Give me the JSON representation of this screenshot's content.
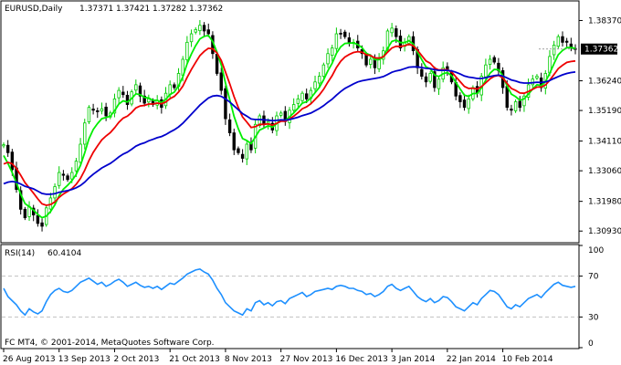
{
  "header": {
    "symbol": "EURUSD,Daily",
    "open": "1.37371",
    "high": "1.37421",
    "low": "1.37282",
    "close": "1.37362"
  },
  "indicator": {
    "name": "RSI(14)",
    "value": "60.4104"
  },
  "footer": {
    "copyright": "FC MT4, © 2001-2014, MetaQuotes Software Corp."
  },
  "price_axis": {
    "ticks": [
      "1.38370",
      "1.36240",
      "1.35190",
      "1.34110",
      "1.33060",
      "1.31980",
      "1.30930"
    ],
    "current_label": "1.37362"
  },
  "rsi_axis": {
    "ticks": [
      "100",
      "70",
      "30",
      "0"
    ]
  },
  "time_axis": {
    "labels": [
      "26 Aug 2013",
      "13 Sep 2013",
      "2 Oct 2013",
      "21 Oct 2013",
      "8 Nov 2013",
      "27 Nov 2013",
      "16 Dec 2013",
      "3 Jan 2014",
      "22 Jan 2014",
      "10 Feb 2014"
    ]
  },
  "colors": {
    "bull_candle": "#00cc00",
    "bear_candle": "#000000",
    "ma_fast": "#00ee00",
    "ma_mid": "#ee0000",
    "ma_slow": "#0000cc",
    "rsi_line": "#1e90ff",
    "level_line": "#c0c0c0",
    "panel_border": "#000000"
  },
  "chart_data": [
    {
      "type": "candlestick",
      "symbol": "EURUSD",
      "timeframe": "Daily",
      "ylim": [
        1.3055,
        1.3903
      ],
      "yticks": [
        1.3837,
        1.3624,
        1.3519,
        1.3411,
        1.3306,
        1.3198,
        1.3093
      ],
      "xticks": [
        "26 Aug 2013",
        "13 Sep 2013",
        "2 Oct 2013",
        "21 Oct 2013",
        "8 Nov 2013",
        "27 Nov 2013",
        "16 Dec 2013",
        "3 Jan 2014",
        "22 Jan 2014",
        "10 Feb 2014"
      ],
      "current_price": 1.37362,
      "close": [
        1.3398,
        1.337,
        1.331,
        1.324,
        1.317,
        1.314,
        1.318,
        1.315,
        1.312,
        1.311,
        1.3175,
        1.321,
        1.325,
        1.33,
        1.329,
        1.3275,
        1.33,
        1.334,
        1.34,
        1.3475,
        1.353,
        1.352,
        1.3515,
        1.3525,
        1.35,
        1.351,
        1.356,
        1.359,
        1.3575,
        1.354,
        1.3585,
        1.361,
        1.357,
        1.3545,
        1.356,
        1.354,
        1.3555,
        1.353,
        1.358,
        1.361,
        1.36,
        1.365,
        1.37,
        1.376,
        1.379,
        1.3805,
        1.382,
        1.38,
        1.379,
        1.372,
        1.365,
        1.359,
        1.349,
        1.344,
        1.338,
        1.337,
        1.335,
        1.34,
        1.338,
        1.347,
        1.35,
        1.347,
        1.348,
        1.345,
        1.35,
        1.351,
        1.348,
        1.352,
        1.354,
        1.356,
        1.358,
        1.356,
        1.359,
        1.362,
        1.364,
        1.368,
        1.372,
        1.374,
        1.379,
        1.379,
        1.378,
        1.376,
        1.376,
        1.374,
        1.372,
        1.368,
        1.37,
        1.367,
        1.37,
        1.373,
        1.38,
        1.381,
        1.378,
        1.374,
        1.376,
        1.378,
        1.373,
        1.367,
        1.364,
        1.362,
        1.365,
        1.36,
        1.363,
        1.367,
        1.366,
        1.362,
        1.357,
        1.355,
        1.353,
        1.356,
        1.36,
        1.358,
        1.364,
        1.368,
        1.37,
        1.369,
        1.366,
        1.36,
        1.353,
        1.352,
        1.355,
        1.353,
        1.357,
        1.361,
        1.363,
        1.364,
        1.36,
        1.365,
        1.371,
        1.375,
        1.378,
        1.376,
        1.376,
        1.374,
        1.3736
      ],
      "series": [
        {
          "name": "MA fast",
          "values": [
            1.336,
            1.3332,
            1.33,
            1.3263,
            1.3223,
            1.319,
            1.3179,
            1.3167,
            1.3152,
            1.314,
            1.3146,
            1.3162,
            1.3186,
            1.3218,
            1.3241,
            1.3255,
            1.3271,
            1.3293,
            1.3325,
            1.337,
            1.3419,
            1.3452,
            1.3473,
            1.349,
            1.3494,
            1.3499,
            1.3518,
            1.3542,
            1.3553,
            1.3549,
            1.3561,
            1.3578,
            1.3575,
            1.3565,
            1.3563,
            1.3555,
            1.3555,
            1.3547,
            1.3558,
            1.3576,
            1.3584,
            1.3606,
            1.3638,
            1.3684,
            1.3719,
            1.3748,
            1.3772,
            1.3781,
            1.3784,
            1.3763,
            1.3725,
            1.368,
            1.3616,
            1.3557,
            1.3498,
            1.3455,
            1.342,
            1.3413,
            1.3402,
            1.3425,
            1.345,
            1.3457,
            1.3465,
            1.346,
            1.3473,
            1.3485,
            1.3484,
            1.3496,
            1.3511,
            1.3527,
            1.3545,
            1.355,
            1.3563,
            1.3582,
            1.3601,
            1.3628,
            1.3659,
            1.3686,
            1.3721,
            1.3744,
            1.3756,
            1.3757,
            1.3758,
            1.3752,
            1.3741,
            1.3721,
            1.3714,
            1.3699,
            1.3699,
            1.3709,
            1.3739,
            1.3763,
            1.3768,
            1.3759,
            1.3759,
            1.3766,
            1.3754,
            1.3726,
            1.3699,
            1.3673,
            1.3666,
            1.3644,
            1.3639,
            1.3649,
            1.3653,
            1.3642,
            1.3618,
            1.3595,
            1.3573,
            1.3569,
            1.3579,
            1.3579,
            1.3599,
            1.3626,
            1.3651,
            1.3664,
            1.3663,
            1.3642,
            1.3605,
            1.3577,
            1.3568,
            1.3555,
            1.356,
            1.3577,
            1.3595,
            1.361,
            1.3607,
            1.3621,
            1.3651,
            1.3684,
            1.3716,
            1.3731,
            1.3741,
            1.3741,
            1.3739
          ]
        },
        {
          "name": "MA mid",
          "values": [
            1.333,
            1.3336,
            1.3331,
            1.3314,
            1.329,
            1.3264,
            1.3246,
            1.3227,
            1.3207,
            1.3189,
            1.3184,
            1.3187,
            1.3196,
            1.3212,
            1.3224,
            1.3233,
            1.3243,
            1.3258,
            1.3279,
            1.3308,
            1.3342,
            1.3371,
            1.3394,
            1.3415,
            1.3429,
            1.3441,
            1.3458,
            1.3477,
            1.3492,
            1.3499,
            1.3512,
            1.3528,
            1.3535,
            1.3537,
            1.3542,
            1.3542,
            1.3545,
            1.3543,
            1.3549,
            1.3561,
            1.3569,
            1.3584,
            1.3605,
            1.3636,
            1.3664,
            1.3689,
            1.3713,
            1.3728,
            1.3739,
            1.3737,
            1.3722,
            1.3696,
            1.3655,
            1.3613,
            1.3568,
            1.353,
            1.3496,
            1.3478,
            1.3459,
            1.3462,
            1.347,
            1.347,
            1.3472,
            1.3467,
            1.3474,
            1.3481,
            1.3481,
            1.3489,
            1.3499,
            1.3511,
            1.3525,
            1.3532,
            1.3543,
            1.3558,
            1.3574,
            1.3594,
            1.3619,
            1.3642,
            1.3671,
            1.3693,
            1.3708,
            1.3717,
            1.3724,
            1.3727,
            1.3725,
            1.3716,
            1.3713,
            1.3705,
            1.3704,
            1.3709,
            1.3725,
            1.374,
            1.3746,
            1.3745,
            1.3748,
            1.3753,
            1.3748,
            1.3732,
            1.3713,
            1.3694,
            1.3686,
            1.3669,
            1.3662,
            1.3663,
            1.3663,
            1.3655,
            1.3638,
            1.3621,
            1.3604,
            1.3597,
            1.3598,
            1.3595,
            1.3603,
            1.3617,
            1.3631,
            1.364,
            1.3643,
            1.3634,
            1.3614,
            1.3597,
            1.359,
            1.3581,
            1.358,
            1.3586,
            1.3594,
            1.3602,
            1.3602,
            1.3609,
            1.3626,
            1.3646,
            1.3667,
            1.3679,
            1.3689,
            1.3692,
            1.3694
          ]
        },
        {
          "name": "MA slow",
          "values": [
            1.326,
            1.3266,
            1.3268,
            1.3266,
            1.3259,
            1.3251,
            1.3247,
            1.3242,
            1.3234,
            1.3226,
            1.3223,
            1.3223,
            1.3225,
            1.323,
            1.3233,
            1.3236,
            1.324,
            1.3246,
            1.3254,
            1.3266,
            1.3281,
            1.3294,
            1.3305,
            1.3316,
            1.3324,
            1.3332,
            1.3343,
            1.3355,
            1.3365,
            1.3372,
            1.3382,
            1.3393,
            1.34,
            1.3405,
            1.3412,
            1.3417,
            1.3423,
            1.3427,
            1.3434,
            1.3443,
            1.3451,
            1.3461,
            1.3474,
            1.349,
            1.3506,
            1.3522,
            1.3538,
            1.3551,
            1.3563,
            1.357,
            1.3572,
            1.3569,
            1.356,
            1.3549,
            1.3535,
            1.3522,
            1.3508,
            1.3499,
            1.3489,
            1.3487,
            1.3487,
            1.3486,
            1.3485,
            1.3483,
            1.3484,
            1.3486,
            1.3485,
            1.3487,
            1.3491,
            1.3495,
            1.3501,
            1.3505,
            1.351,
            1.3518,
            1.3526,
            1.3536,
            1.3548,
            1.3559,
            1.3573,
            1.3586,
            1.3597,
            1.3605,
            1.3613,
            1.362,
            1.3624,
            1.3627,
            1.363,
            1.3632,
            1.3635,
            1.3639,
            1.3646,
            1.3654,
            1.3659,
            1.3662,
            1.3667,
            1.3672,
            1.3673,
            1.3673,
            1.3671,
            1.3668,
            1.3667,
            1.3663,
            1.3661,
            1.3661,
            1.3661,
            1.3659,
            1.3654,
            1.3648,
            1.3641,
            1.3637,
            1.3635,
            1.3632,
            1.3632,
            1.3635,
            1.3639,
            1.3642,
            1.3644,
            1.3641,
            1.3634,
            1.3627,
            1.3623,
            1.3618,
            1.3616,
            1.3616,
            1.3617,
            1.3619,
            1.3618,
            1.362,
            1.3625,
            1.3632,
            1.3639,
            1.3645,
            1.365,
            1.3653,
            1.3655
          ]
        }
      ]
    },
    {
      "type": "line",
      "title": "RSI(14)",
      "ylim": [
        0,
        100
      ],
      "levels": [
        30,
        70
      ],
      "series": [
        {
          "name": "RSI(14)",
          "values": [
            58,
            50,
            46,
            42,
            36,
            32,
            38,
            35,
            33,
            36,
            45,
            52,
            56,
            58,
            55,
            54,
            56,
            60,
            64,
            66,
            68,
            65,
            62,
            64,
            60,
            62,
            65,
            67,
            64,
            60,
            62,
            64,
            61,
            59,
            60,
            58,
            60,
            57,
            60,
            63,
            62,
            65,
            68,
            72,
            74,
            76,
            77,
            74,
            72,
            66,
            58,
            52,
            44,
            40,
            36,
            34,
            32,
            38,
            36,
            44,
            46,
            42,
            44,
            41,
            45,
            46,
            43,
            48,
            50,
            52,
            54,
            50,
            52,
            55,
            56,
            57,
            58,
            57,
            60,
            61,
            60,
            58,
            58,
            56,
            55,
            52,
            53,
            50,
            52,
            55,
            60,
            62,
            58,
            56,
            58,
            60,
            55,
            50,
            47,
            45,
            48,
            44,
            46,
            50,
            49,
            45,
            40,
            38,
            36,
            40,
            44,
            42,
            48,
            52,
            56,
            55,
            52,
            46,
            40,
            38,
            42,
            40,
            44,
            48,
            50,
            52,
            49,
            54,
            58,
            62,
            64,
            61,
            60,
            59,
            60
          ]
        }
      ]
    }
  ]
}
